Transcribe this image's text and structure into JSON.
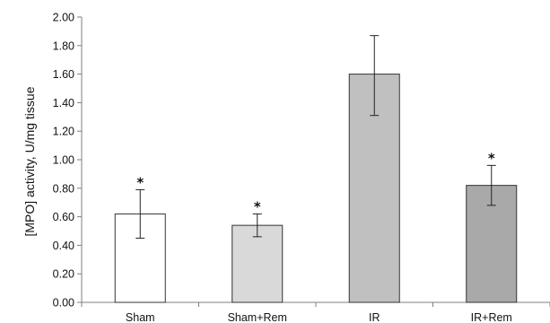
{
  "chart_data": {
    "type": "bar",
    "title": "",
    "xlabel": "",
    "ylabel": "[MPO] activity, U/mg tissue",
    "ylim": [
      0,
      2.0
    ],
    "yticks": [
      "0.00",
      "0.20",
      "0.40",
      "0.60",
      "0.80",
      "1.00",
      "1.20",
      "1.40",
      "1.60",
      "1.80",
      "2.00"
    ],
    "categories": [
      "Sham",
      "Sham+Rem",
      "IR",
      "IR+Rem"
    ],
    "values": [
      0.62,
      0.54,
      1.6,
      0.82
    ],
    "error_low": [
      0.45,
      0.46,
      1.31,
      0.68
    ],
    "error_high": [
      0.79,
      0.62,
      1.87,
      0.96
    ],
    "significance": [
      "*",
      "*",
      "",
      "*"
    ],
    "bar_colors": [
      "#ffffff",
      "#d9d9d9",
      "#c0c0c0",
      "#a9a9a9"
    ],
    "grid": false,
    "legend": "none"
  }
}
